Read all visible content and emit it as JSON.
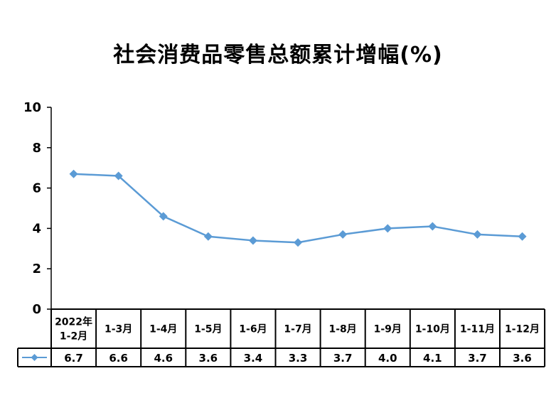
{
  "chart_data": {
    "type": "line",
    "title": "社会消费品零售总额累计增幅(%)",
    "categories": [
      [
        "2022年",
        "1-2月"
      ],
      [
        "1-3月"
      ],
      [
        "1-4月"
      ],
      [
        "1-5月"
      ],
      [
        "1-6月"
      ],
      [
        "1-7月"
      ],
      [
        "1-8月"
      ],
      [
        "1-9月"
      ],
      [
        "1-10月"
      ],
      [
        "1-11月"
      ],
      [
        "1-12月"
      ]
    ],
    "values": [
      6.7,
      6.6,
      4.6,
      3.6,
      3.4,
      3.3,
      3.7,
      4.0,
      4.1,
      3.7,
      3.6
    ],
    "value_labels": [
      "6.7",
      "6.6",
      "4.6",
      "3.6",
      "3.4",
      "3.3",
      "3.7",
      "4.0",
      "4.1",
      "3.7",
      "3.6"
    ],
    "ylim": [
      0,
      10
    ],
    "yticks": [
      0,
      2,
      4,
      6,
      8,
      10
    ],
    "grid": false,
    "legend_placement": "data-table",
    "line_color": "#5b9bd5",
    "marker": "diamond"
  }
}
